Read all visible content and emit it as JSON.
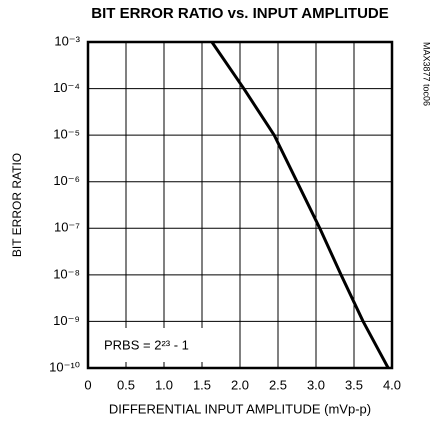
{
  "chart_data": {
    "type": "line",
    "title": "BIT ERROR RATIO vs. INPUT AMPLITUDE",
    "x_label": "DIFFERENTIAL INPUT AMPLITUDE (mVp-p)",
    "y_label": "BIT ERROR RATIO",
    "side_note": "MAX3877 toc06",
    "annotation": "PRBS = 2²³ - 1",
    "x": [
      1.63,
      2.05,
      2.45,
      2.75,
      3.05,
      3.33,
      3.62,
      3.95
    ],
    "values": [
      0.001,
      0.0001,
      1e-05,
      1e-06,
      1e-07,
      1e-08,
      1e-09,
      1e-10
    ],
    "color": "#000000",
    "xlim": [
      0,
      4
    ],
    "xticks": [
      0,
      0.5,
      {
        "value": 1,
        "label": "1.0"
      },
      1.5,
      {
        "value": 2,
        "label": "2.0"
      },
      2.5,
      {
        "value": 3,
        "label": "3.0"
      },
      3.5,
      {
        "value": 4,
        "label": "4.0"
      }
    ],
    "ylim": [
      1e-10,
      0.001
    ],
    "yticks": [
      {
        "value": 1e-10,
        "label": "10⁻¹⁰"
      },
      {
        "value": 1e-09,
        "label": "10⁻⁹"
      },
      {
        "value": 1e-08,
        "label": "10⁻⁸"
      },
      {
        "value": 1e-07,
        "label": "10⁻⁷"
      },
      {
        "value": 1e-06,
        "label": "10⁻⁶"
      },
      {
        "value": 1e-05,
        "label": "10⁻⁵"
      },
      {
        "value": 0.0001,
        "label": "10⁻⁴"
      },
      {
        "value": 0.001,
        "label": "10⁻³"
      }
    ],
    "log_y": true,
    "grid": true
  }
}
